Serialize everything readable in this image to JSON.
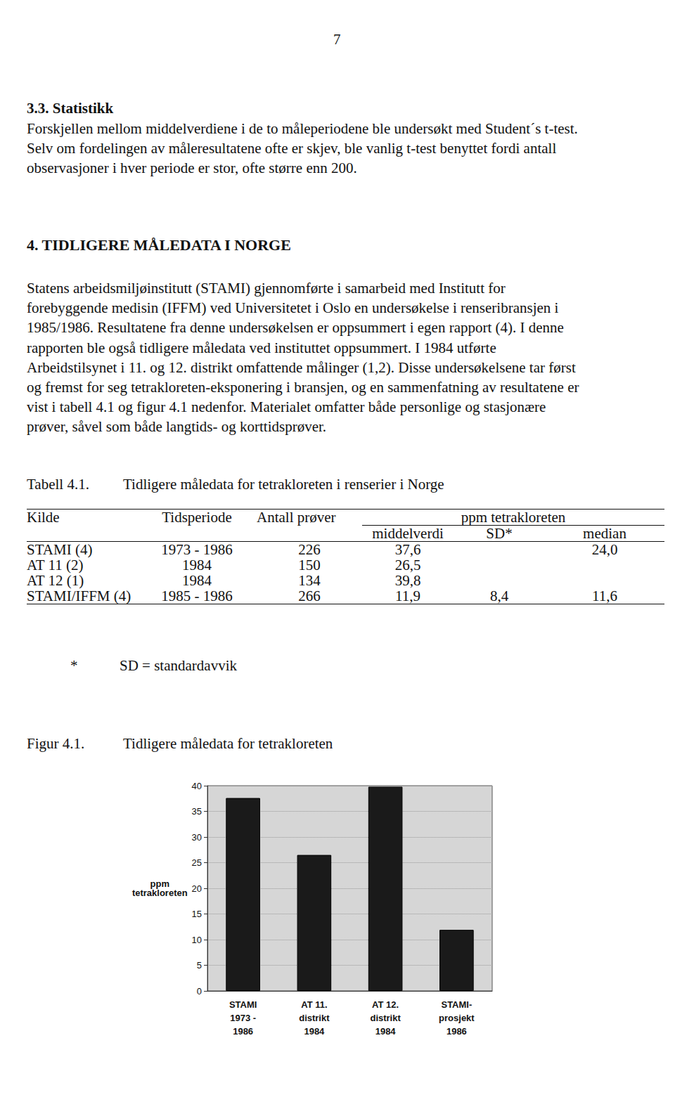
{
  "page_number": "7",
  "sections": [
    {
      "heading": "3.3. Statistikk",
      "lines": [
        "Forskjellen mellom middelverdiene i de to måleperiodene ble undersøkt med Student´s t-test.",
        "Selv om fordelingen av måleresultatene ofte er skjev, ble vanlig t-test benyttet fordi antall",
        "observasjoner i hver periode er stor, ofte større enn 200."
      ]
    },
    {
      "heading": "4. TIDLIGERE MÅLEDATA I NORGE",
      "lines": [
        "Statens arbeidsmiljøinstitutt (STAMI) gjennomførte i samarbeid med Institutt for",
        "forebyggende medisin (IFFM) ved Universitetet i Oslo en undersøkelse i renseribransjen i",
        "1985/1986. Resultatene fra denne undersøkelsen er oppsummert i egen rapport (4). I denne",
        "rapporten ble også tidligere måledata ved instituttet oppsummert. I 1984 utførte",
        "Arbeidstilsynet i 11. og 12. distrikt omfattende målinger (1,2). Disse undersøkelsene tar først",
        "og fremst for seg tetrakloreten-eksponering i bransjen, og en sammenfatning av resultatene er",
        "vist i tabell 4.1 og figur 4.1 nedenfor. Materialet omfatter både personlige og stasjonære",
        "prøver, såvel som både langtids- og korttidsprøver."
      ]
    }
  ],
  "table": {
    "label": "Tabell 4.1.",
    "title": "Tidligere måledata for tetrakloreten i renserier i Norge",
    "header": [
      "Kilde",
      "Tidsperiode",
      "Antall prøver"
    ],
    "group_header": "ppm tetrakloreten",
    "subheader": [
      "middelverdi",
      "SD*",
      "median"
    ],
    "rows": [
      [
        "STAMI (4)",
        "1973 - 1986",
        "226",
        "37,6",
        null,
        "24,0"
      ],
      [
        "AT 11 (2)",
        "1984",
        "150",
        "26,5",
        null,
        null
      ],
      [
        "AT 12 (1)",
        "1984",
        "134",
        "39,8",
        null,
        null
      ],
      [
        "STAMI/IFFM (4)",
        "1985 - 1986",
        "266",
        "11,9",
        "8,4",
        "11,6"
      ]
    ],
    "footnote": {
      "mark": "*",
      "text": "SD = standardavvik"
    }
  },
  "figure": {
    "label": "Figur 4.1.",
    "title": "Tidligere måledata for tetrakloreten"
  },
  "chart_data": {
    "type": "bar",
    "y_label": "ppm\ntetrakloreten",
    "categories": [
      "STAMI\n1973 -\n1986",
      "AT 11.\ndistrikt\n1984",
      "AT 12.\ndistrikt\n1984",
      "STAMI-\nprosjekt\n1986"
    ],
    "values": [
      37.6,
      26.5,
      39.8,
      11.9
    ],
    "color": "#1a1a1a",
    "ylim": [
      0,
      40
    ],
    "yticks": [
      0,
      5,
      10,
      15,
      20,
      25,
      30,
      35,
      40
    ],
    "grid": true
  }
}
